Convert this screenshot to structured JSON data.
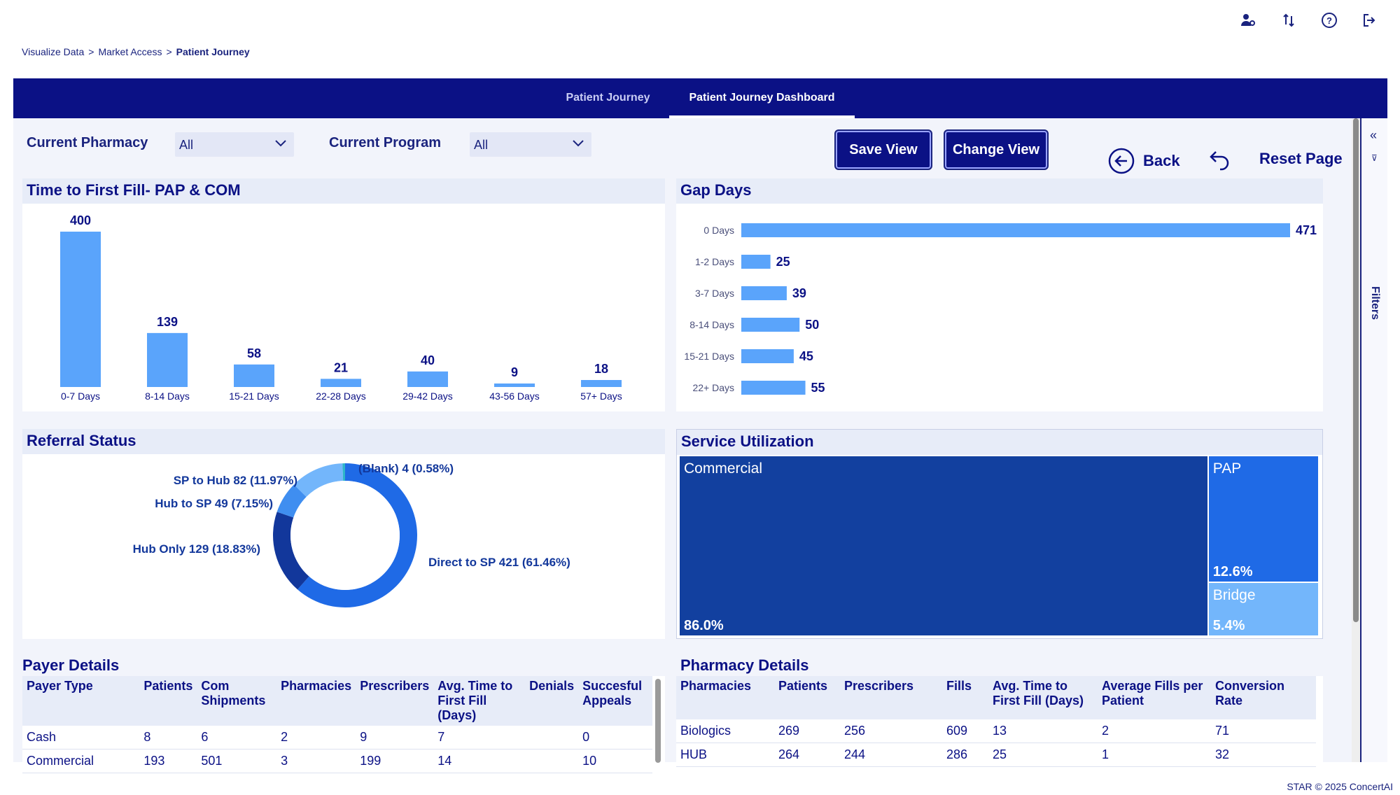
{
  "breadcrumb": [
    "Visualize Data",
    "Market Access",
    "Patient Journey"
  ],
  "breadcrumb_sep": ">",
  "nav": {
    "tabs": [
      "Patient Journey",
      "Patient Journey Dashboard"
    ],
    "active": 1
  },
  "filters": {
    "pharmacy_label": "Current Pharmacy",
    "pharmacy_value": "All",
    "program_label": "Current Program",
    "program_value": "All"
  },
  "actions": {
    "save": "Save View",
    "change": "Change View",
    "back": "Back",
    "reset": "Reset Page"
  },
  "filters_pane_label": "Filters",
  "footer": "STAR © 2025 ConcertAI",
  "charts": {
    "ttff": {
      "title": "Time to First Fill- PAP & COM",
      "type": "bar",
      "categories": [
        "0-7 Days",
        "8-14 Days",
        "15-21 Days",
        "22-28 Days",
        "29-42 Days",
        "43-56 Days",
        "57+ Days"
      ],
      "values": [
        400,
        139,
        58,
        21,
        40,
        9,
        18
      ],
      "color": "#5aa4fb"
    },
    "gap": {
      "title": "Gap Days",
      "type": "bar",
      "categories": [
        "0 Days",
        "1-2 Days",
        "3-7 Days",
        "8-14 Days",
        "15-21 Days",
        "22+ Days"
      ],
      "values": [
        471,
        25,
        39,
        50,
        45,
        55
      ],
      "color": "#5aa4fb"
    },
    "referral": {
      "title": "Referral Status",
      "type": "pie",
      "slices": [
        {
          "label": "Direct to SP 421 (61.46%)",
          "value": 61.46,
          "color": "#1f6ae6"
        },
        {
          "label": "Hub Only 129 (18.83%)",
          "value": 18.83,
          "color": "#12379b"
        },
        {
          "label": "Hub to SP 49 (7.15%)",
          "value": 7.15,
          "color": "#3f8ef0"
        },
        {
          "label": "SP to Hub 82 (11.97%)",
          "value": 11.97,
          "color": "#73b6fb"
        },
        {
          "label": "(Blank) 4 (0.58%)",
          "value": 0.58,
          "color": "#2db5c9"
        }
      ]
    },
    "service": {
      "title": "Service Utilization",
      "type": "treemap",
      "items": [
        {
          "label": "Commercial",
          "pct": "86.0%",
          "value": 86.0,
          "color": "#12409f"
        },
        {
          "label": "PAP",
          "pct": "12.6%",
          "value": 12.6,
          "color": "#1f6ae6"
        },
        {
          "label": "Bridge",
          "pct": "5.4%",
          "value": 5.4,
          "color": "#73b6fb"
        }
      ]
    }
  },
  "payer": {
    "title": "Payer Details",
    "columns": [
      "Payer Type",
      "Patients",
      "Com Shipments",
      "Pharmacies",
      "Prescribers",
      "Avg. Time to First Fill (Days)",
      "Denials",
      "Succesful Appeals"
    ],
    "rows": [
      [
        "Cash",
        "8",
        "6",
        "2",
        "9",
        "7",
        "",
        "0"
      ],
      [
        "Commercial",
        "193",
        "501",
        "3",
        "199",
        "14",
        "",
        "10"
      ]
    ]
  },
  "pharmacy": {
    "title": "Pharmacy Details",
    "columns": [
      "Pharmacies",
      "Patients",
      "Prescribers",
      "Fills",
      "Avg. Time to First Fill (Days)",
      "Average Fills per Patient",
      "Conversion Rate"
    ],
    "rows": [
      [
        "Biologics",
        "269",
        "256",
        "609",
        "13",
        "2",
        "71"
      ],
      [
        "HUB",
        "264",
        "244",
        "286",
        "25",
        "1",
        "32"
      ]
    ]
  }
}
